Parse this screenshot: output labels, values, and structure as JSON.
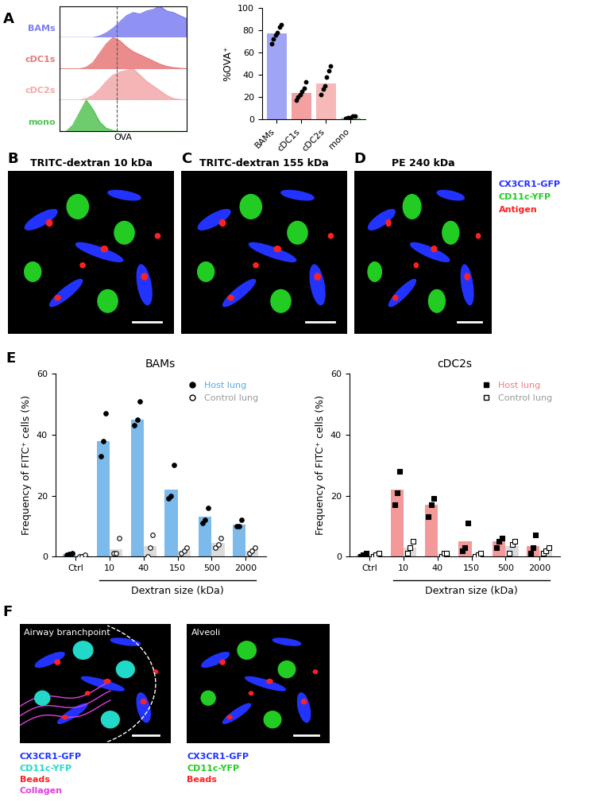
{
  "chart_data": [
    {
      "panel": "A",
      "type": "ridge",
      "xlabel": "OVA",
      "tick_labels": false,
      "x": [
        0,
        1,
        2,
        3,
        4,
        5,
        6,
        7,
        8,
        9,
        10,
        11,
        12,
        13,
        14,
        15,
        16,
        17,
        18,
        19
      ],
      "xlim": [
        0,
        19
      ],
      "ylim": [
        0,
        1
      ],
      "gate": 8.5,
      "series": [
        {
          "name": "BAMs",
          "color": "#7b7ff0",
          "values": [
            0,
            0,
            0,
            0,
            0,
            0,
            0.05,
            0.15,
            0.3,
            0.5,
            0.7,
            0.8,
            0.75,
            0.85,
            0.9,
            1.0,
            0.85,
            0.8,
            0.7,
            0.6
          ]
        },
        {
          "name": "cDC1s",
          "color": "#e87878",
          "values": [
            0,
            0,
            0,
            0,
            0.05,
            0.2,
            0.5,
            0.8,
            1.0,
            0.9,
            0.7,
            0.55,
            0.45,
            0.35,
            0.25,
            0.15,
            0.08,
            0.04,
            0.02,
            0
          ]
        },
        {
          "name": "cDC2s",
          "color": "#f2a8a8",
          "values": [
            0,
            0,
            0,
            0,
            0.05,
            0.15,
            0.35,
            0.6,
            0.8,
            0.9,
            0.95,
            1.0,
            0.8,
            0.6,
            0.45,
            0.3,
            0.15,
            0.05,
            0.02,
            0
          ]
        },
        {
          "name": "mono",
          "color": "#55c455",
          "values": [
            0,
            0,
            0.2,
            0.6,
            1.0,
            0.7,
            0.3,
            0.1,
            0.03,
            0,
            0,
            0,
            0,
            0,
            0,
            0,
            0,
            0,
            0,
            0
          ]
        }
      ]
    },
    {
      "type": "bar",
      "ylabel": "%OVA⁺",
      "categories": [
        "BAMs",
        "cDC1s",
        "cDC2s",
        "mono"
      ],
      "values": [
        77,
        24,
        32,
        2
      ],
      "points": [
        [
          68,
          72,
          76,
          78,
          83,
          85
        ],
        [
          17,
          20,
          22,
          25,
          28,
          34
        ],
        [
          22,
          27,
          30,
          38,
          44,
          48
        ],
        [
          1,
          2,
          2,
          3,
          3
        ]
      ],
      "colors": [
        "#a0a4f5",
        "#f4a0a0",
        "#f7b8b8",
        "#a8e0a8"
      ],
      "ylim": [
        0,
        100
      ],
      "yticks": [
        0,
        20,
        40,
        60,
        80,
        100
      ]
    },
    {
      "panel": "E",
      "type": "bar",
      "title": "BAMs",
      "xlabel": "Dextran size (kDa)",
      "ylabel": "Frequency of FITC⁺ cells (%)",
      "categories": [
        "Ctrl",
        "10",
        "40",
        "150",
        "500",
        "2000"
      ],
      "ylim": [
        0,
        60
      ],
      "yticks": [
        0,
        20,
        40,
        60
      ],
      "legend": "upper right",
      "series": [
        {
          "name": "Host lung",
          "color": "#5aa9e6",
          "marker": "circle",
          "values": [
            0.8,
            38,
            45,
            22,
            13,
            10.5
          ],
          "points": [
            [
              0.5,
              0.8,
              1
            ],
            [
              33,
              38,
              47
            ],
            [
              43,
              45,
              51
            ],
            [
              19,
              20,
              30
            ],
            [
              11,
              12,
              16
            ],
            [
              10,
              10,
              12
            ]
          ]
        },
        {
          "name": "Control lung",
          "color": "#999999",
          "marker": "open_circle",
          "values": [
            0.2,
            2.5,
            3.5,
            2,
            4.5,
            2
          ],
          "points": [
            [
              0,
              0,
              0.5
            ],
            [
              1,
              1,
              6
            ],
            [
              0,
              3,
              7
            ],
            [
              1,
              2,
              3
            ],
            [
              3,
              4,
              6
            ],
            [
              1,
              2,
              3
            ]
          ]
        }
      ]
    },
    {
      "type": "bar",
      "title": "cDC2s",
      "xlabel": "Dextran size (kDa)",
      "ylabel": "Frequency of FITC⁺ cells (%)",
      "categories": [
        "Ctrl",
        "10",
        "40",
        "150",
        "500",
        "2000"
      ],
      "ylim": [
        0,
        60
      ],
      "yticks": [
        0,
        20,
        40,
        60
      ],
      "legend": "upper right",
      "series": [
        {
          "name": "Host lung",
          "color": "#f08080",
          "marker": "square",
          "values": [
            0.5,
            22,
            17,
            5,
            5,
            3.5
          ],
          "points": [
            [
              0,
              0.5,
              1
            ],
            [
              17,
              21,
              28
            ],
            [
              13,
              17,
              19
            ],
            [
              2,
              3,
              11
            ],
            [
              3,
              5,
              6
            ],
            [
              1,
              3,
              7
            ]
          ]
        },
        {
          "name": "Control lung",
          "color": "#999999",
          "marker": "open_square",
          "values": [
            0.5,
            3,
            0.8,
            0.5,
            3.5,
            2
          ],
          "points": [
            [
              0,
              0.5,
              1
            ],
            [
              1,
              3,
              5
            ],
            [
              0,
              1,
              1
            ],
            [
              0,
              0.5,
              1
            ],
            [
              1,
              4,
              5
            ],
            [
              1,
              2,
              3
            ]
          ]
        }
      ]
    }
  ],
  "images": [
    {
      "panel": "B",
      "title": "TRITC-dextran 10 kDa"
    },
    {
      "panel": "C",
      "title": "TRITC-dextran 155 kDa"
    },
    {
      "panel": "D",
      "title": "PE 240 kDa"
    }
  ],
  "image_legend": [
    {
      "text": "CX3CR1-GFP",
      "color": "#2233ff"
    },
    {
      "text": "CD11c-YFP",
      "color": "#22cc22"
    },
    {
      "text": "Antigen",
      "color": "#ff2020"
    }
  ],
  "panel_f": {
    "panel": "F",
    "images": [
      {
        "title": "Airway branchpoint",
        "legend": [
          {
            "text": "CX3CR1-GFP",
            "color": "#2233ff"
          },
          {
            "text": "CD11c-YFP",
            "color": "#22d8c8"
          },
          {
            "text": "Beads",
            "color": "#ff2020"
          },
          {
            "text": "Collagen",
            "color": "#e040e0"
          }
        ]
      },
      {
        "title": "Alveoli",
        "legend": [
          {
            "text": "CX3CR1-GFP",
            "color": "#2233ff"
          },
          {
            "text": "CD11c-YFP",
            "color": "#22cc22"
          },
          {
            "text": "Beads",
            "color": "#ff2020"
          }
        ]
      }
    ]
  }
}
